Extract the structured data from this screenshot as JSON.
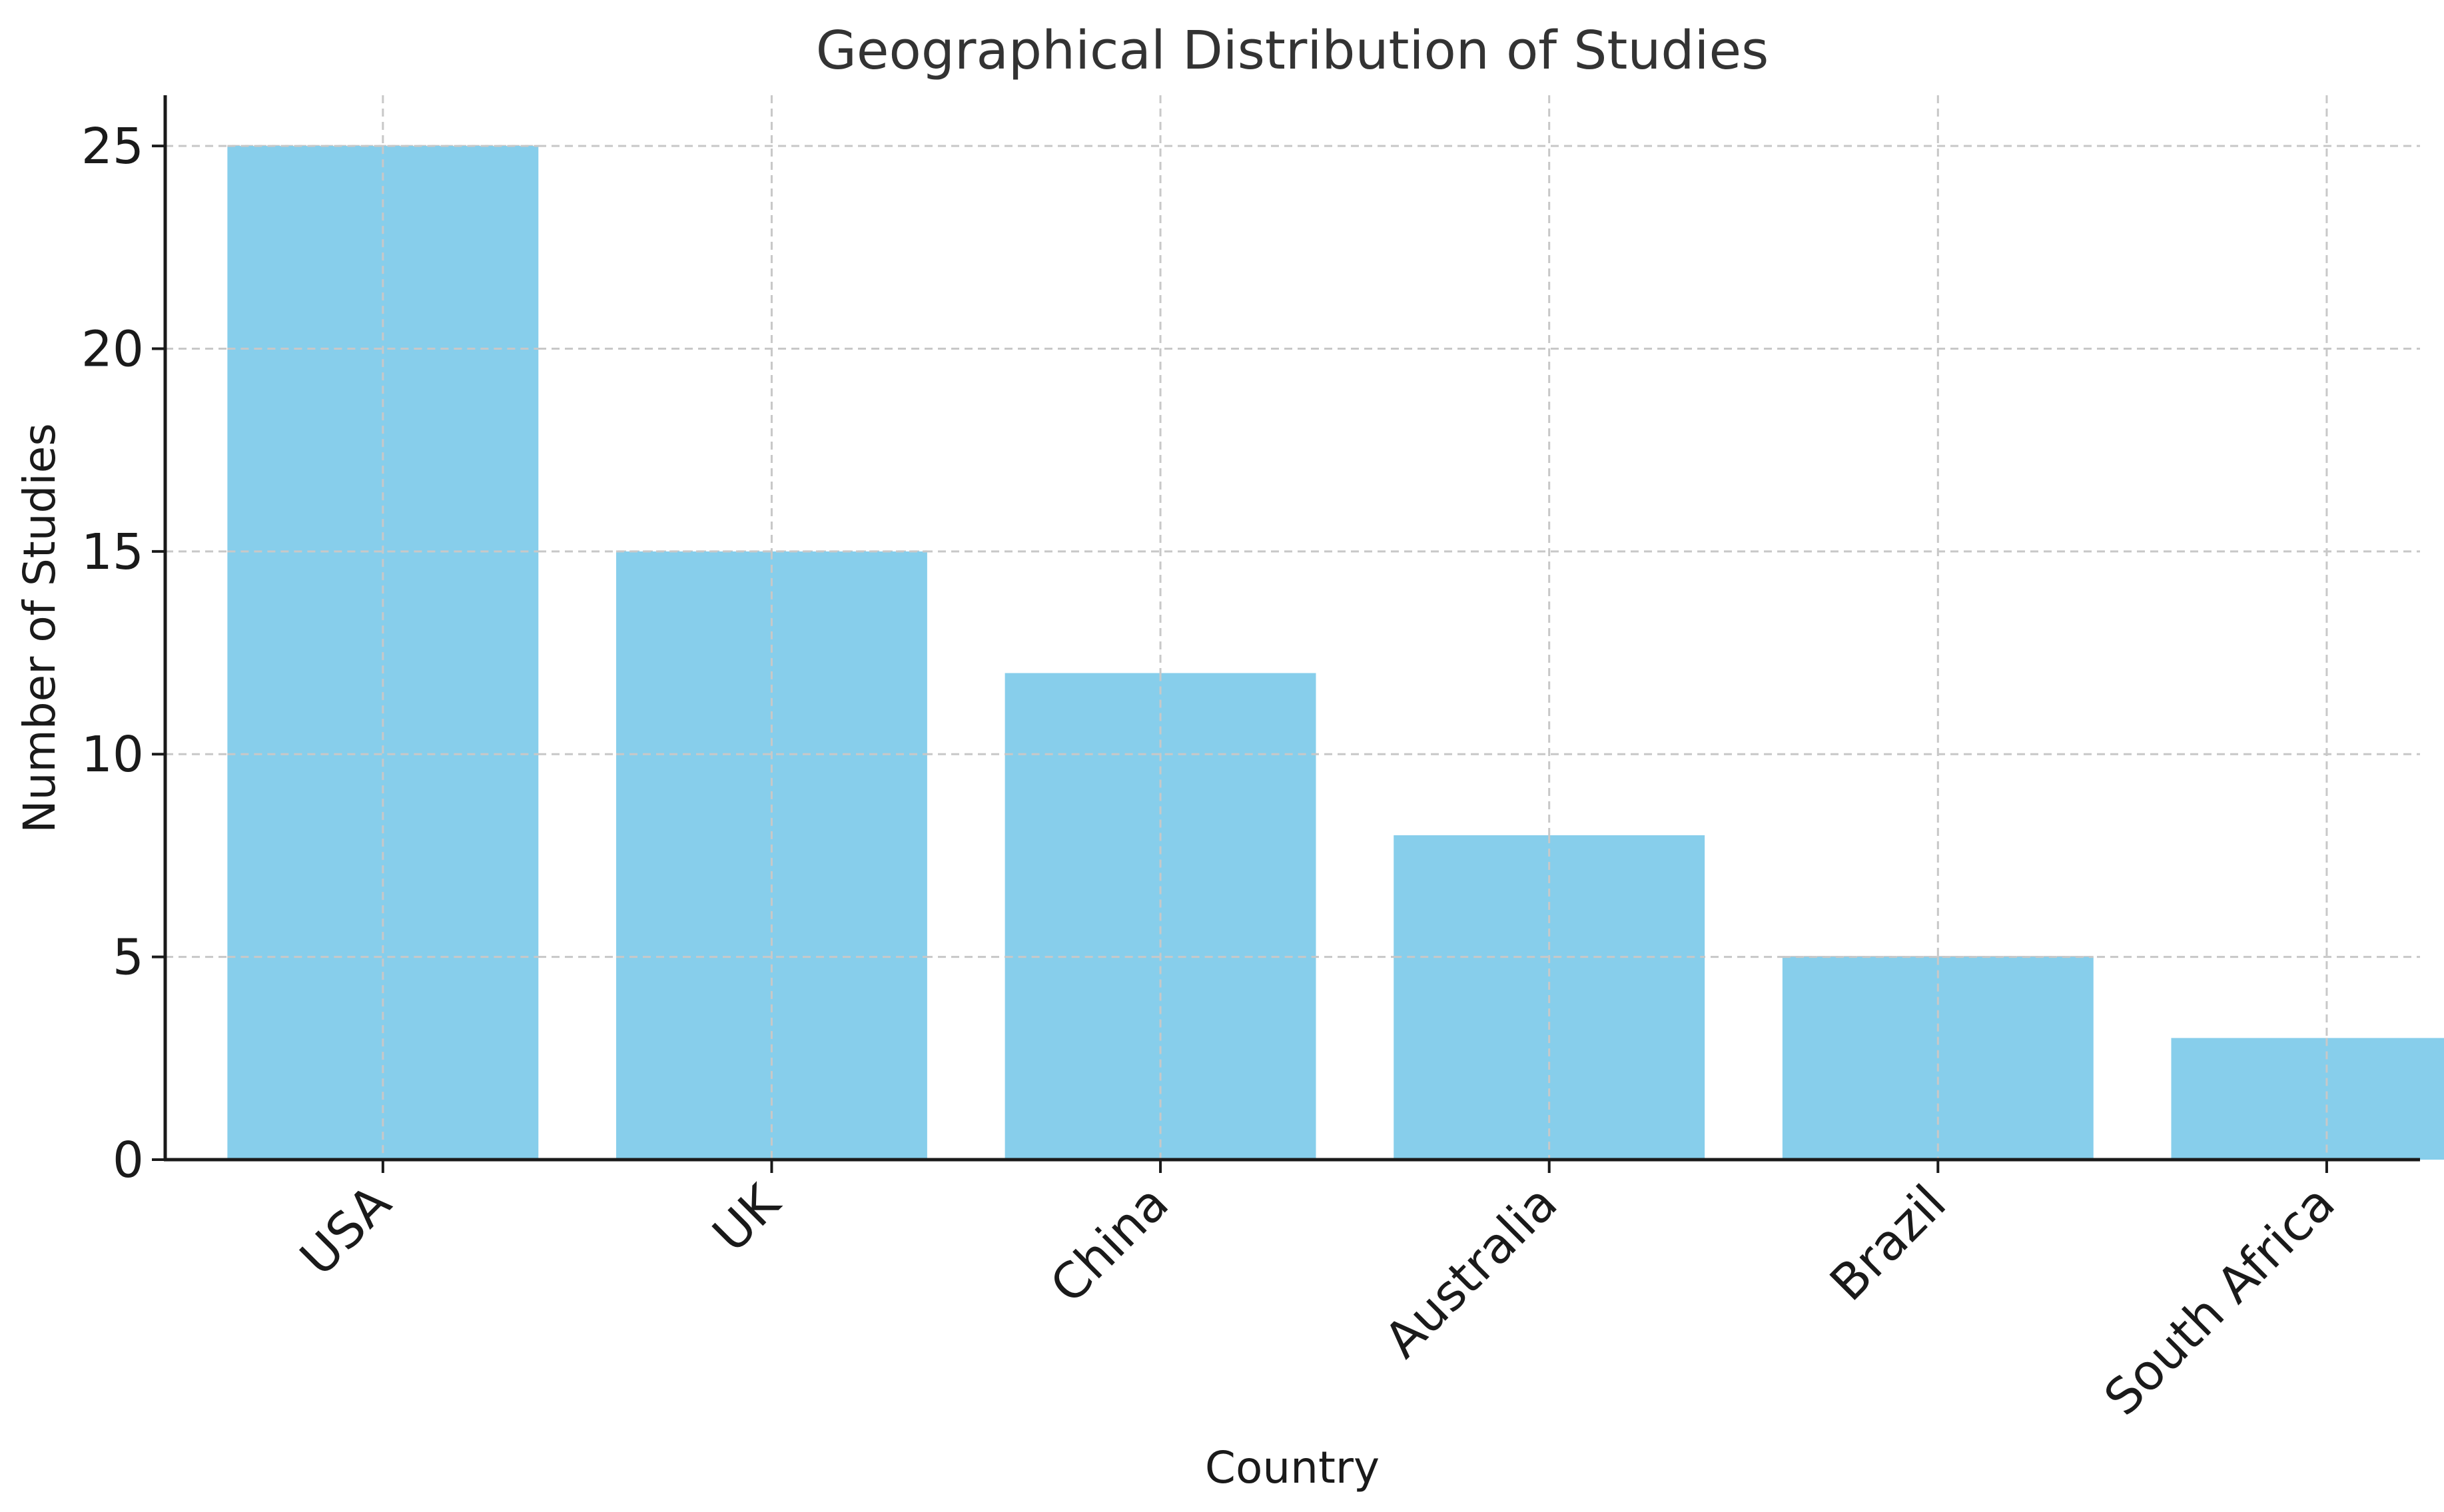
{
  "chart_data": {
    "type": "bar",
    "title": "Geographical Distribution of Studies",
    "xlabel": "Country",
    "ylabel": "Number of Studies",
    "categories": [
      "USA",
      "UK",
      "China",
      "Australia",
      "Brazil",
      "South Africa"
    ],
    "values": [
      25,
      15,
      12,
      8,
      5,
      3
    ],
    "ylim": [
      0,
      26.25
    ],
    "yticks": [
      0,
      5,
      10,
      15,
      20,
      25
    ],
    "grid": true,
    "bar_color": "#87CEEB",
    "x_tick_rotation": "45 degrees"
  }
}
